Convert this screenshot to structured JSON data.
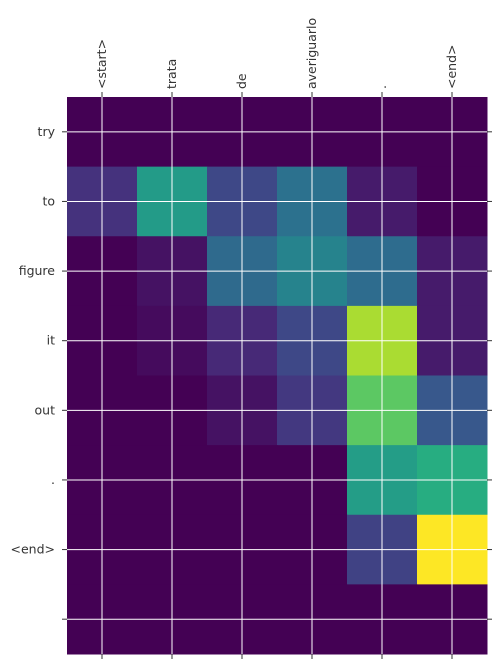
{
  "chart_data": {
    "type": "heatmap",
    "title": "",
    "xlabel": "",
    "ylabel": "",
    "x_tick_labels": [
      "<start>",
      "trata",
      "de",
      "averiguarlo",
      ".",
      "<end>"
    ],
    "y_tick_labels": [
      "try",
      "to",
      "figure",
      "it",
      "out",
      ".",
      "<end>",
      ""
    ],
    "value_range": [
      0,
      1
    ],
    "colormap": "viridis",
    "grid": true,
    "colorbar": false,
    "values": [
      [
        0.0,
        0.0,
        0.0,
        0.0,
        0.0,
        0.0
      ],
      [
        0.15,
        0.55,
        0.22,
        0.38,
        0.08,
        0.0
      ],
      [
        0.0,
        0.05,
        0.35,
        0.45,
        0.36,
        0.08
      ],
      [
        0.0,
        0.03,
        0.12,
        0.22,
        0.88,
        0.08
      ],
      [
        0.0,
        0.0,
        0.05,
        0.17,
        0.75,
        0.28
      ],
      [
        0.0,
        0.0,
        0.0,
        0.0,
        0.56,
        0.63
      ],
      [
        0.0,
        0.0,
        0.0,
        0.0,
        0.2,
        1.0
      ],
      [
        0.0,
        0.0,
        0.0,
        0.0,
        0.0,
        0.0
      ]
    ]
  }
}
